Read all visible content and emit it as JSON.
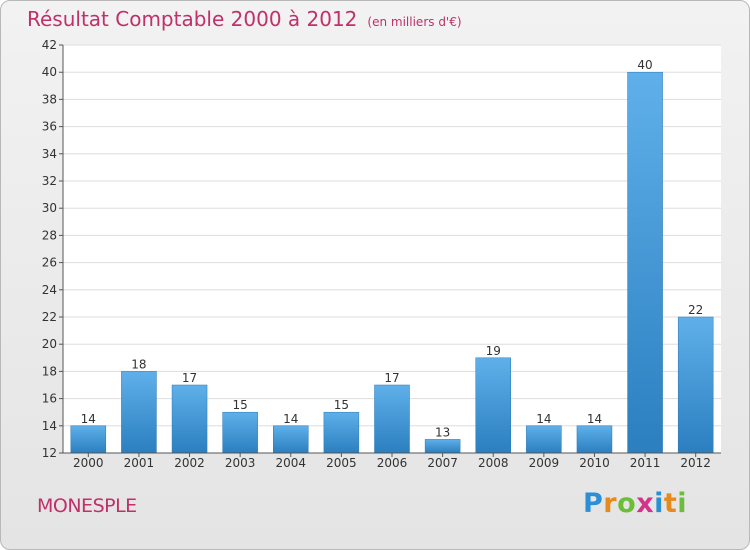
{
  "header": {
    "title": "Résultat Comptable 2000 à 2012",
    "unit": "(en milliers d'€)"
  },
  "footer": {
    "commune": "MONESPLE",
    "brand": {
      "letters": [
        "P",
        "r",
        "o",
        "x",
        "i",
        "t",
        "i"
      ],
      "colors": [
        "#2a8fd6",
        "#e68a1c",
        "#6cbd3a",
        "#d4338a",
        "#2a8fd6",
        "#e68a1c",
        "#6cbd3a"
      ]
    }
  },
  "colors": {
    "bar_top": "#5fb0ea",
    "bar_bottom": "#2b7fbf",
    "text": "#c0306a"
  },
  "chart_data": {
    "type": "bar",
    "title": "Résultat Comptable 2000 à 2012",
    "categories": [
      "2000",
      "2001",
      "2002",
      "2003",
      "2004",
      "2005",
      "2006",
      "2007",
      "2008",
      "2009",
      "2010",
      "2011",
      "2012"
    ],
    "values": [
      14,
      18,
      17,
      15,
      14,
      15,
      17,
      13,
      19,
      14,
      14,
      40,
      22
    ],
    "ylim": [
      12,
      42
    ],
    "yticks": [
      12,
      14,
      16,
      18,
      20,
      22,
      24,
      26,
      28,
      30,
      32,
      34,
      36,
      38,
      40,
      42
    ],
    "grid": true
  }
}
